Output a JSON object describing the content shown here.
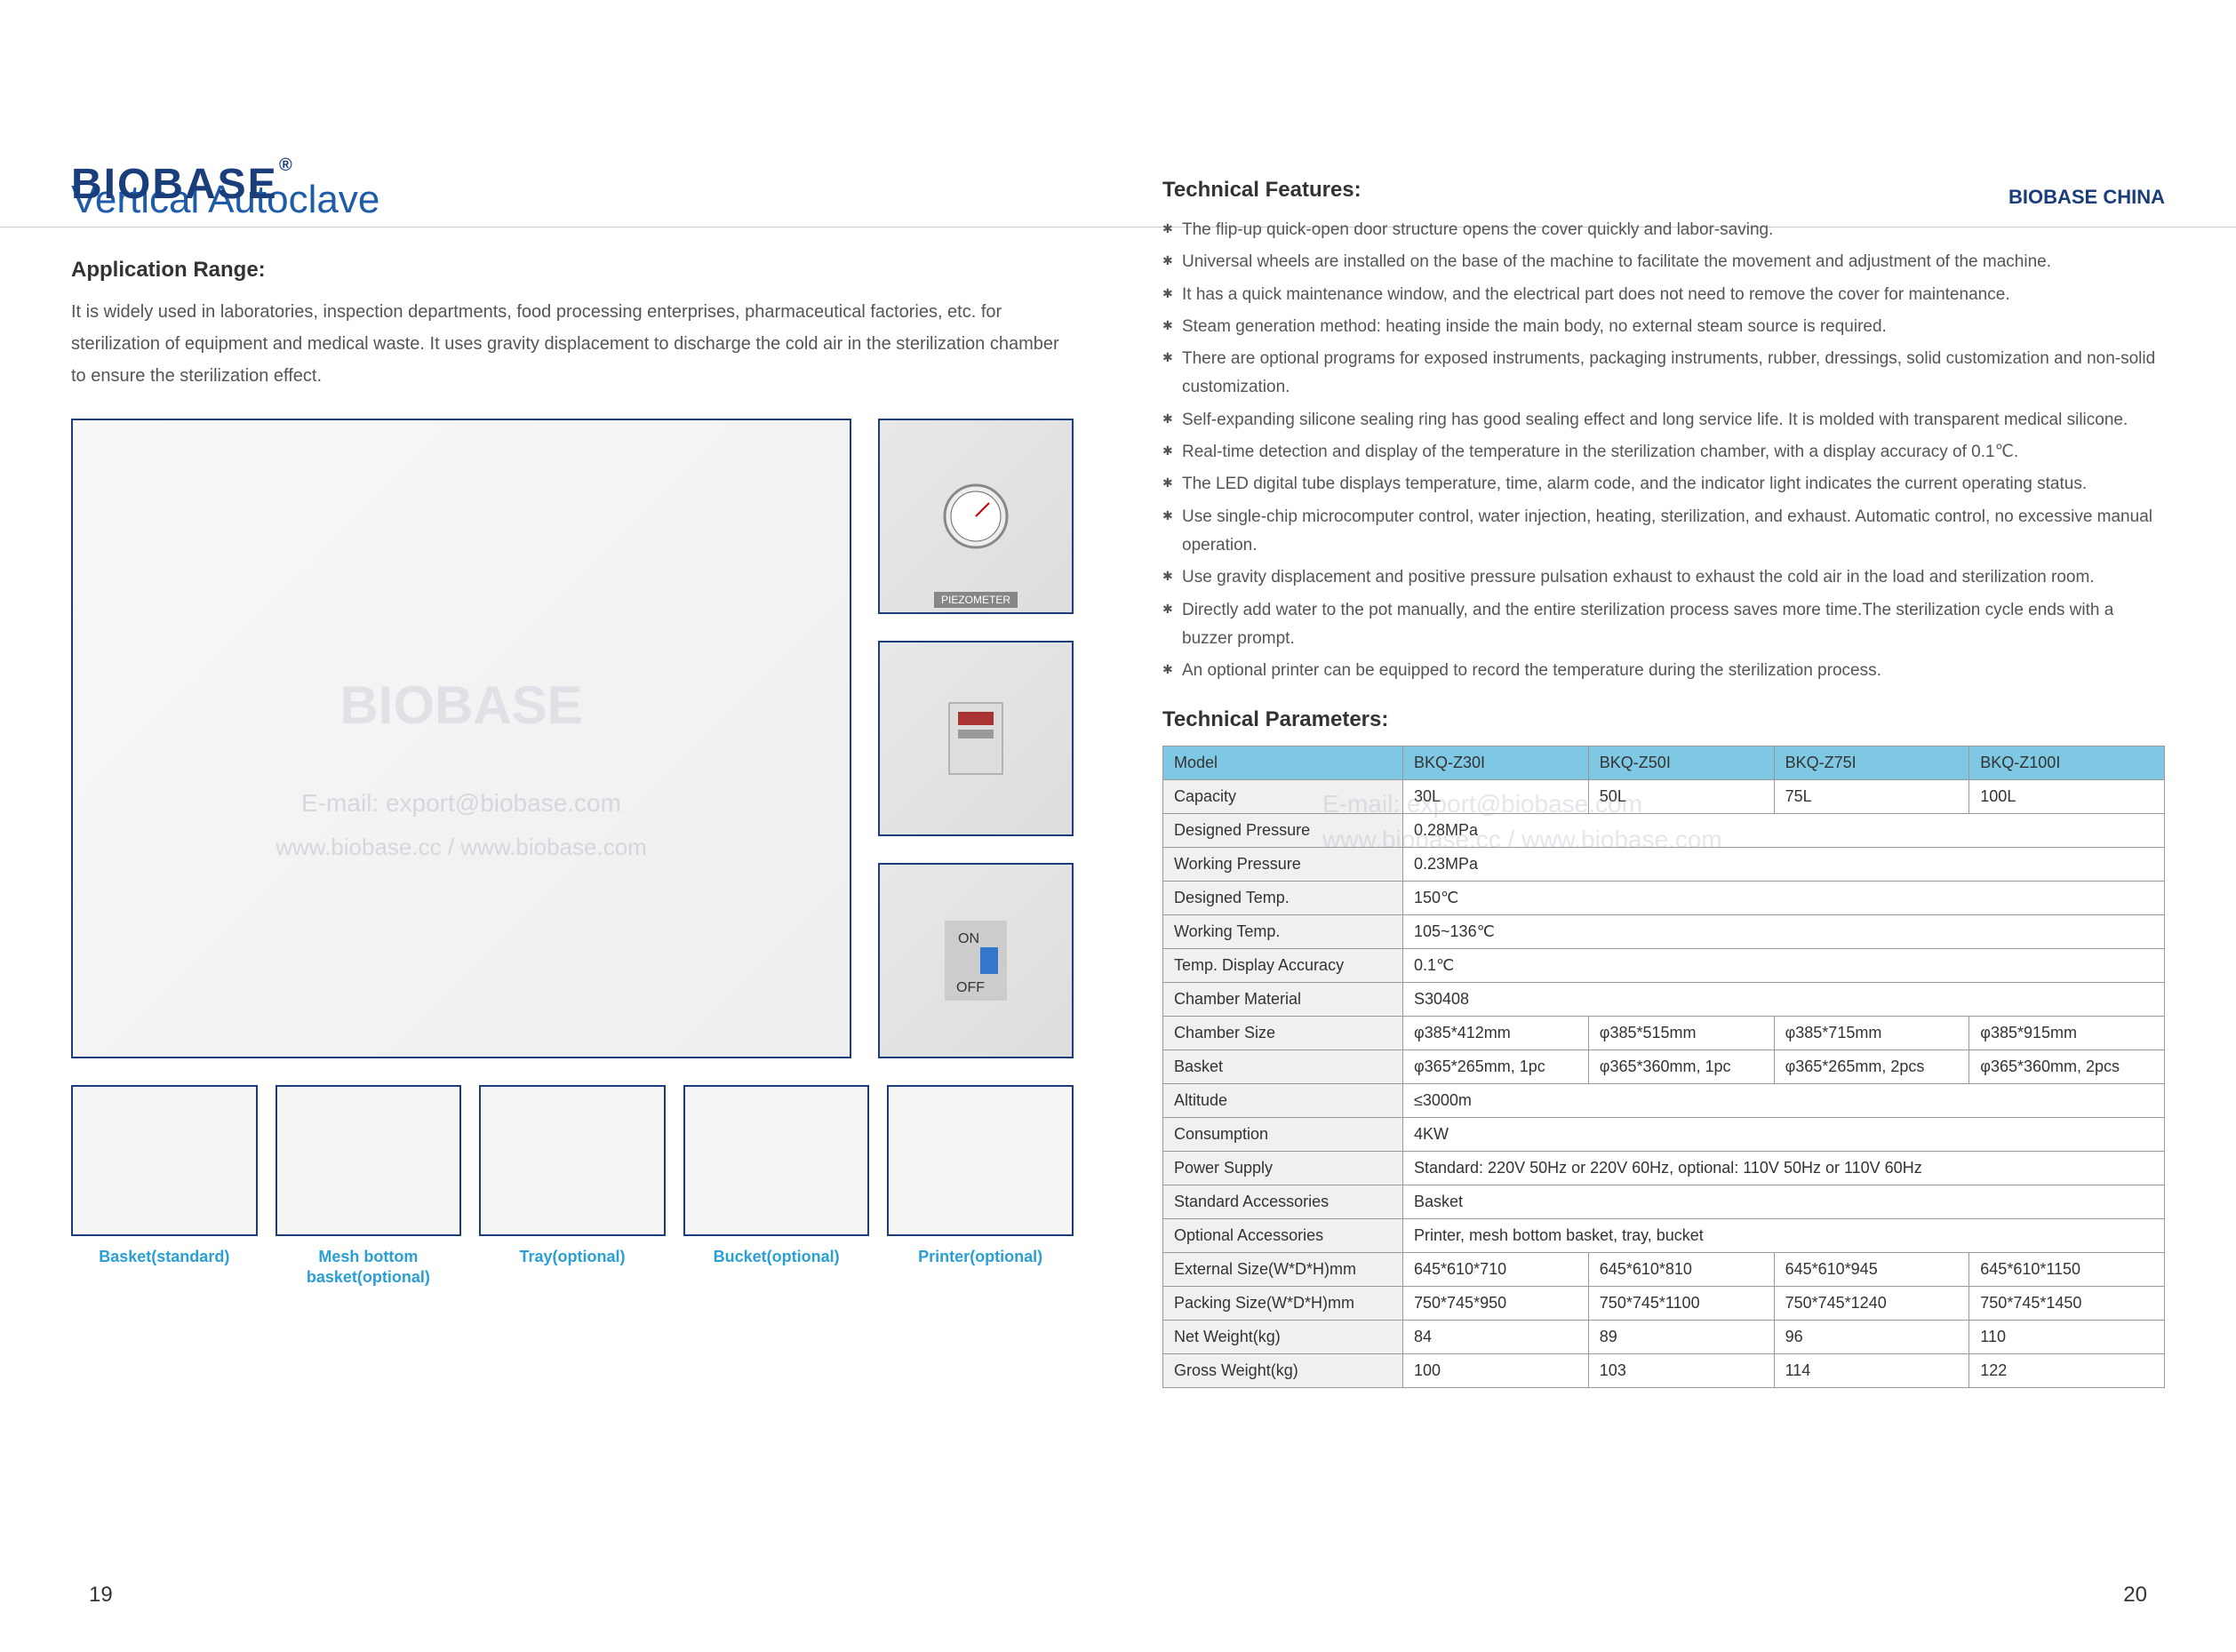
{
  "header": {
    "logo": "BIOBASE",
    "brand_right": "BIOBASE CHINA"
  },
  "left": {
    "title": "Vertical Autoclave",
    "app_range_title": "Application Range:",
    "app_range_text": "It is widely used in laboratories, inspection departments, food processing enterprises, pharmaceutical factories, etc. for sterilization of equipment and medical waste. It uses gravity displacement to discharge the cold air in the sterilization chamber to ensure the sterilization effect.",
    "watermark": "BIOBASE",
    "watermark_email": "E-mail: export@biobase.com",
    "watermark_url": "www.biobase.cc / www.biobase.com",
    "piezometer": "PIEZOMETER",
    "accessories": [
      {
        "label": "Basket(standard)"
      },
      {
        "label": "Mesh bottom basket(optional)"
      },
      {
        "label": "Tray(optional)"
      },
      {
        "label": "Bucket(optional)"
      },
      {
        "label": "Printer(optional)"
      }
    ],
    "page_num": "19"
  },
  "right": {
    "features_title": "Technical Features:",
    "features": [
      "The flip-up quick-open door structure opens the cover quickly and labor-saving.",
      "Universal wheels are installed on the base of the machine to facilitate the movement and adjustment of the machine.",
      "It has a quick maintenance window, and the electrical part does not need to remove the cover for maintenance.",
      "Steam generation method: heating inside the main body, no external steam source is required.",
      "There are optional programs for exposed instruments, packaging instruments, rubber, dressings, solid customization and non-solid customization.",
      "Self-expanding silicone sealing ring has good sealing effect and long service life. It is molded with transparent medical silicone.",
      "Real-time detection and display of the temperature in the sterilization chamber, with a display accuracy of 0.1℃.",
      "The LED digital tube displays temperature, time, alarm code, and the indicator light indicates the current operating status.",
      "Use single-chip microcomputer control, water injection, heating, sterilization, and exhaust. Automatic control, no excessive manual operation.",
      "Use gravity displacement and positive pressure pulsation exhaust to exhaust the cold air in the load and sterilization room.",
      "Directly add water to the pot manually, and the entire sterilization process saves more time.The sterilization cycle ends with a buzzer prompt.",
      "An optional printer can be equipped to record the temperature during the sterilization process."
    ],
    "params_title": "Technical Parameters:",
    "table": {
      "header": [
        "Model",
        "BKQ-Z30I",
        "BKQ-Z50I",
        "BKQ-Z75I",
        "BKQ-Z100I"
      ],
      "rows": [
        {
          "label": "Capacity",
          "cells": [
            "30L",
            "50L",
            "75L",
            "100L"
          ]
        },
        {
          "label": "Designed Pressure",
          "span": "0.28MPa"
        },
        {
          "label": "Working Pressure",
          "span": "0.23MPa"
        },
        {
          "label": "Designed Temp.",
          "span": "150℃"
        },
        {
          "label": "Working Temp.",
          "span": "105~136℃"
        },
        {
          "label": "Temp. Display Accuracy",
          "span": "0.1℃"
        },
        {
          "label": "Chamber Material",
          "span": "S30408"
        },
        {
          "label": "Chamber Size",
          "cells": [
            "φ385*412mm",
            "φ385*515mm",
            "φ385*715mm",
            "φ385*915mm"
          ]
        },
        {
          "label": "Basket",
          "cells": [
            "φ365*265mm, 1pc",
            "φ365*360mm, 1pc",
            "φ365*265mm, 2pcs",
            "φ365*360mm, 2pcs"
          ]
        },
        {
          "label": "Altitude",
          "span": "≤3000m"
        },
        {
          "label": "Consumption",
          "span": "4KW"
        },
        {
          "label": "Power Supply",
          "span": "Standard: 220V 50Hz or 220V 60Hz, optional: 110V 50Hz or 110V 60Hz"
        },
        {
          "label": "Standard Accessories",
          "span": "Basket"
        },
        {
          "label": "Optional Accessories",
          "span": "Printer, mesh bottom basket, tray, bucket"
        },
        {
          "label": "External Size(W*D*H)mm",
          "cells": [
            "645*610*710",
            "645*610*810",
            "645*610*945",
            "645*610*1150"
          ]
        },
        {
          "label": "Packing Size(W*D*H)mm",
          "cells": [
            "750*745*950",
            "750*745*1100",
            "750*745*1240",
            "750*745*1450"
          ]
        },
        {
          "label": "Net Weight(kg)",
          "cells": [
            "84",
            "89",
            "96",
            "110"
          ]
        },
        {
          "label": "Gross Weight(kg)",
          "cells": [
            "100",
            "103",
            "114",
            "122"
          ]
        }
      ]
    },
    "page_num": "20"
  }
}
